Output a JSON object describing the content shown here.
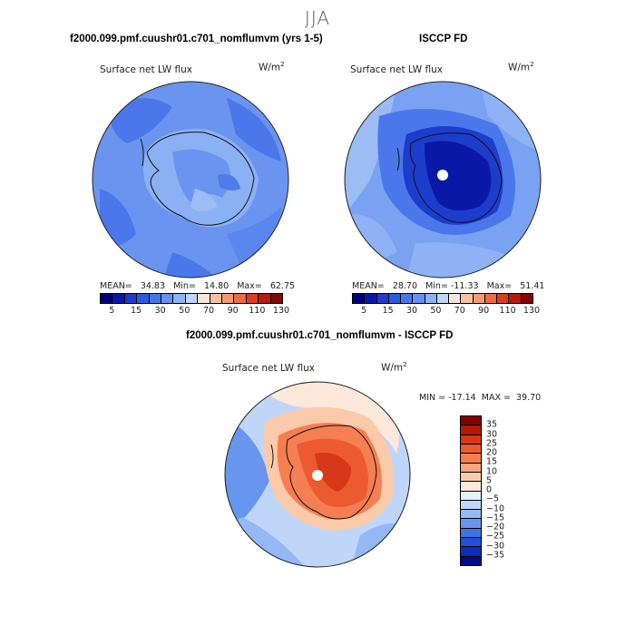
{
  "season": "JJA",
  "panels": {
    "model": {
      "title": "f2000.099.pmf.cuushr01.c701_nomflumvm (yrs 1-5)",
      "variable": "Surface net LW flux",
      "units": "W/m²",
      "stats": "MEAN=   34.83   Min=   14.80   Max=   62.75"
    },
    "obs": {
      "title": "ISCCP FD",
      "variable": "Surface net LW flux",
      "units": "W/m²",
      "stats": "MEAN=   28.70   Min= -11.33   Max=   51.41"
    },
    "diff": {
      "title": "f2000.099.pmf.cuushr01.c701_nomflumvm - ISCCP FD",
      "variable": "Surface net LW flux",
      "units": "W/m²",
      "stats": "MIN = -17.14  MAX =  39.70"
    }
  },
  "colorbars": {
    "abs": {
      "colors": [
        "#00007f",
        "#0a18a8",
        "#1c3ccc",
        "#2c5ae0",
        "#4577ec",
        "#6492f2",
        "#8fb2f6",
        "#bfd6fa",
        "#fae6d8",
        "#f8c2a2",
        "#f59a70",
        "#ef6c42",
        "#dd3e1e",
        "#b51c0c",
        "#870400"
      ],
      "tick_labels": [
        "5",
        "15",
        "30",
        "50",
        "70",
        "90",
        "110",
        "130"
      ]
    },
    "diff": {
      "colors": [
        "#870000",
        "#b41a06",
        "#d8381a",
        "#ec5a30",
        "#f57e52",
        "#f8a47e",
        "#fbcaaa",
        "#fde9dc",
        "#e6f0fb",
        "#c0d6f8",
        "#94b8f4",
        "#6896ee",
        "#4072e6",
        "#2250d8",
        "#0e2cb8",
        "#000a8c"
      ],
      "tick_labels": [
        "35",
        "30",
        "25",
        "20",
        "15",
        "10",
        "5",
        "0",
        "−5",
        "−10",
        "−15",
        "−20",
        "−25",
        "−30",
        "−35"
      ]
    }
  }
}
